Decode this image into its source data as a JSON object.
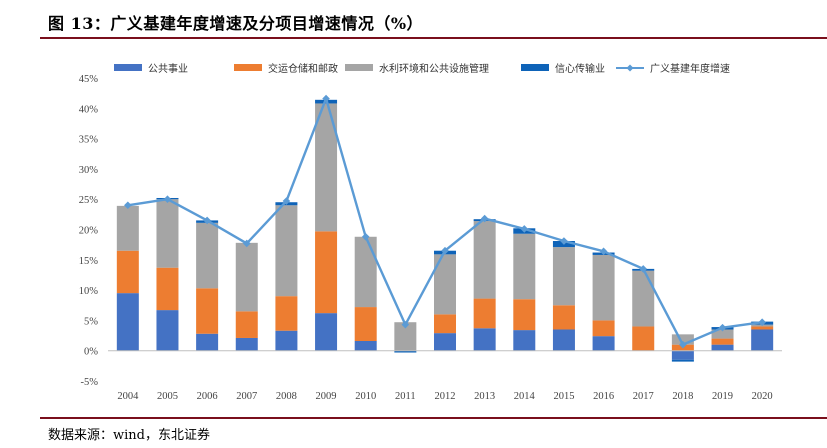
{
  "figure": {
    "title": "图 13：广义基建年度增速及分项目增速情况（%）",
    "source": "数据来源：wind，东北证券"
  },
  "chart_data": {
    "type": "bar",
    "stacked": true,
    "categories": [
      "2004",
      "2005",
      "2006",
      "2007",
      "2008",
      "2009",
      "2010",
      "2011",
      "2012",
      "2013",
      "2014",
      "2015",
      "2016",
      "2017",
      "2018",
      "2019",
      "2020"
    ],
    "ylim": [
      -5,
      45
    ],
    "yticks": [
      "-5%",
      "0%",
      "5%",
      "10%",
      "15%",
      "20%",
      "25%",
      "30%",
      "35%",
      "40%",
      "45%"
    ],
    "xlabel": "",
    "ylabel": "",
    "grid": false,
    "legend_position": "top",
    "series": [
      {
        "name": "公共事业",
        "kind": "bar",
        "color": "#4472C4",
        "values": [
          9.5,
          6.7,
          2.8,
          2.1,
          3.3,
          6.2,
          1.6,
          0.0,
          2.9,
          3.7,
          3.4,
          3.5,
          2.4,
          0.0,
          -1.5,
          1.0,
          3.5
        ]
      },
      {
        "name": "交运仓储和邮政",
        "kind": "bar",
        "color": "#ED7D31",
        "values": [
          7.0,
          7.0,
          7.5,
          4.4,
          5.7,
          13.5,
          5.6,
          0.0,
          3.1,
          4.9,
          5.1,
          4.0,
          2.6,
          4.0,
          1.0,
          1.0,
          0.5
        ]
      },
      {
        "name": "水利环境和公共设施管理",
        "kind": "bar",
        "color": "#A5A5A5",
        "values": [
          7.4,
          11.3,
          10.8,
          11.3,
          15.0,
          21.1,
          11.6,
          4.7,
          9.9,
          12.8,
          10.8,
          9.6,
          10.8,
          9.2,
          1.7,
          1.5,
          0.3
        ]
      },
      {
        "name": "信心传输业",
        "kind": "bar",
        "color": "#0E63B8",
        "values": [
          0.0,
          0.2,
          0.4,
          0.0,
          0.5,
          0.6,
          0.0,
          -0.3,
          0.6,
          0.3,
          0.9,
          1.0,
          0.4,
          0.3,
          -0.3,
          0.4,
          0.5
        ]
      },
      {
        "name": "广义基建年度增速",
        "kind": "line",
        "color": "#5B9BD5",
        "values": [
          24.0,
          25.0,
          21.5,
          17.7,
          24.7,
          41.6,
          18.8,
          4.3,
          16.5,
          21.8,
          20.1,
          18.1,
          16.4,
          13.5,
          1.0,
          3.8,
          4.7
        ]
      }
    ]
  }
}
